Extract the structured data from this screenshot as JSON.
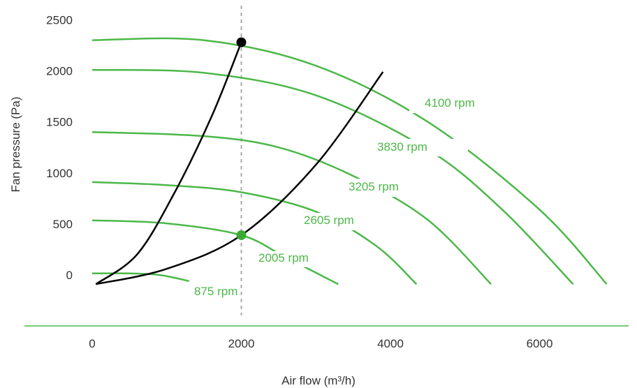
{
  "chart_data": {
    "type": "line",
    "xlabel": "Air flow (m³/h)",
    "ylabel": "Fan pressure (Pa)",
    "x_ticks": [
      "0",
      "2000",
      "4000",
      "6000"
    ],
    "y_ticks": [
      "0",
      "500",
      "1000",
      "1500",
      "2000",
      "2500"
    ],
    "xlim": [
      0,
      7000
    ],
    "ylim": [
      0,
      2500
    ],
    "colors": {
      "fan": "#4cb848",
      "system": "#000000",
      "marker_green": "#3aaa35",
      "marker_black": "#000000",
      "reference": "#aaaaaa"
    },
    "series": [
      {
        "name": "875 rpm",
        "x": [
          0,
          500,
          900,
          1300
        ],
        "y": [
          15,
          15,
          0,
          -60
        ]
      },
      {
        "name": "2005 rpm",
        "x": [
          0,
          1000,
          2000,
          2600,
          3300
        ],
        "y": [
          535,
          505,
          390,
          170,
          -90
        ]
      },
      {
        "name": "2605 rpm",
        "x": [
          0,
          1000,
          2000,
          3000,
          3800,
          4350
        ],
        "y": [
          910,
          880,
          810,
          620,
          290,
          -90
        ]
      },
      {
        "name": "3205 rpm",
        "x": [
          0,
          1500,
          2500,
          3500,
          4500,
          5350
        ],
        "y": [
          1400,
          1360,
          1250,
          970,
          540,
          -90
        ]
      },
      {
        "name": "3830 rpm",
        "x": [
          0,
          1500,
          3000,
          4500,
          5500,
          6450
        ],
        "y": [
          2010,
          1980,
          1760,
          1230,
          640,
          -90
        ]
      },
      {
        "name": "4100 rpm",
        "x": [
          0,
          1500,
          3000,
          4500,
          6000,
          6900
        ],
        "y": [
          2300,
          2300,
          2050,
          1500,
          640,
          -90
        ]
      }
    ],
    "system_curves": [
      {
        "x": [
          50,
          600,
          1100,
          1600,
          2000
        ],
        "y": [
          -90,
          200,
          800,
          1550,
          2280
        ]
      },
      {
        "x": [
          50,
          1000,
          2000,
          3000,
          3900
        ],
        "y": [
          -90,
          60,
          390,
          1080,
          1990
        ]
      }
    ],
    "reference_line_x": 2000,
    "markers": [
      {
        "x": 2000,
        "y": 2280,
        "color": "marker_black"
      },
      {
        "x": 2000,
        "y": 390,
        "color": "marker_green"
      }
    ]
  }
}
